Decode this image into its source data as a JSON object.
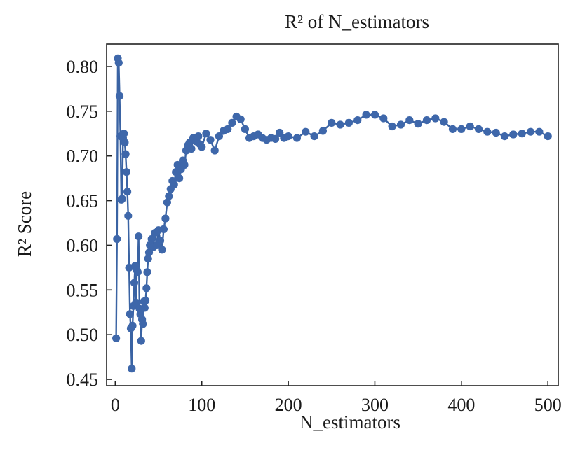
{
  "chart_data": {
    "type": "line",
    "title": "R² of N_estimators",
    "xlabel": "N_estimators",
    "ylabel": "R² Score",
    "xlim": [
      -10,
      512
    ],
    "ylim": [
      0.443,
      0.825
    ],
    "xticks": [
      0,
      100,
      200,
      300,
      400,
      500
    ],
    "yticks": [
      0.45,
      0.5,
      0.55,
      0.6,
      0.65,
      0.7,
      0.75,
      0.8
    ],
    "xtick_labels": [
      "0",
      "100",
      "200",
      "300",
      "400",
      "500"
    ],
    "ytick_labels": [
      "0.45",
      "0.50",
      "0.55",
      "0.60",
      "0.65",
      "0.70",
      "0.75",
      "0.80"
    ],
    "grid": false,
    "legend": "none",
    "markers": true,
    "series": [
      {
        "color": "#3e67aa",
        "x": [
          1,
          2,
          3,
          4,
          5,
          6,
          7,
          8,
          9,
          10,
          11,
          12,
          13,
          14,
          15,
          16,
          17,
          18,
          19,
          20,
          21,
          22,
          23,
          24,
          25,
          26,
          27,
          28,
          29,
          30,
          31,
          32,
          33,
          34,
          35,
          36,
          37,
          38,
          39,
          40,
          42,
          44,
          46,
          48,
          50,
          52,
          54,
          56,
          58,
          60,
          62,
          64,
          66,
          68,
          70,
          72,
          74,
          76,
          78,
          80,
          82,
          84,
          86,
          88,
          90,
          92,
          94,
          96,
          98,
          100,
          105,
          110,
          115,
          120,
          125,
          130,
          135,
          140,
          145,
          150,
          155,
          160,
          165,
          170,
          175,
          180,
          185,
          190,
          195,
          200,
          210,
          220,
          230,
          240,
          250,
          260,
          270,
          280,
          290,
          300,
          310,
          320,
          330,
          340,
          350,
          360,
          370,
          380,
          390,
          400,
          410,
          420,
          430,
          440,
          450,
          460,
          470,
          480,
          490,
          500
        ],
        "y": [
          0.496,
          0.607,
          0.809,
          0.804,
          0.767,
          0.722,
          0.651,
          0.652,
          0.72,
          0.725,
          0.715,
          0.702,
          0.682,
          0.66,
          0.633,
          0.575,
          0.523,
          0.507,
          0.462,
          0.51,
          0.532,
          0.558,
          0.577,
          0.536,
          0.572,
          0.57,
          0.61,
          0.529,
          0.523,
          0.493,
          0.517,
          0.512,
          0.537,
          0.53,
          0.538,
          0.552,
          0.57,
          0.585,
          0.592,
          0.6,
          0.607,
          0.598,
          0.614,
          0.6,
          0.617,
          0.605,
          0.595,
          0.618,
          0.63,
          0.648,
          0.655,
          0.663,
          0.672,
          0.668,
          0.682,
          0.69,
          0.675,
          0.685,
          0.695,
          0.69,
          0.706,
          0.712,
          0.715,
          0.708,
          0.72,
          0.718,
          0.716,
          0.722,
          0.713,
          0.71,
          0.725,
          0.718,
          0.706,
          0.722,
          0.728,
          0.73,
          0.737,
          0.744,
          0.741,
          0.73,
          0.72,
          0.722,
          0.724,
          0.72,
          0.718,
          0.72,
          0.719,
          0.726,
          0.72,
          0.722,
          0.72,
          0.727,
          0.722,
          0.728,
          0.737,
          0.735,
          0.737,
          0.74,
          0.746,
          0.746,
          0.742,
          0.733,
          0.735,
          0.74,
          0.736,
          0.74,
          0.742,
          0.738,
          0.73,
          0.73,
          0.733,
          0.73,
          0.727,
          0.726,
          0.722,
          0.724,
          0.725,
          0.727,
          0.727,
          0.722
        ]
      }
    ]
  }
}
